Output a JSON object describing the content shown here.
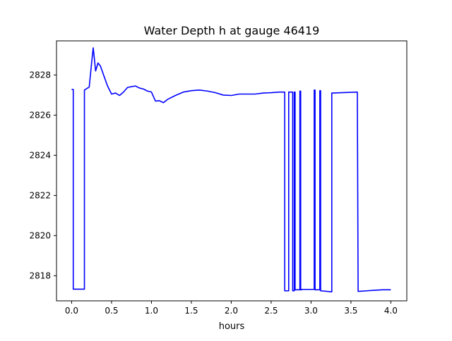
{
  "chart_data": {
    "type": "line",
    "title": "Water Depth h at gauge 46419",
    "xlabel": "hours",
    "ylabel": "",
    "xlim": [
      -0.19,
      4.2
    ],
    "ylim": [
      2816.75,
      2829.7
    ],
    "xticks": [
      0.0,
      0.5,
      1.0,
      1.5,
      2.0,
      2.5,
      3.0,
      3.5,
      4.0
    ],
    "xtick_labels": [
      "0.0",
      "0.5",
      "1.0",
      "1.5",
      "2.0",
      "2.5",
      "3.0",
      "3.5",
      "4.0"
    ],
    "yticks": [
      2818,
      2820,
      2822,
      2824,
      2826,
      2828
    ],
    "ytick_labels": [
      "2818",
      "2820",
      "2822",
      "2824",
      "2826",
      "2828"
    ],
    "grid": false,
    "legend": false,
    "series": [
      {
        "color": "#0000ff",
        "x": [
          0.0,
          0.02,
          0.02,
          0.16,
          0.16,
          0.22,
          0.25,
          0.27,
          0.285,
          0.3,
          0.33,
          0.36,
          0.4,
          0.45,
          0.5,
          0.55,
          0.6,
          0.65,
          0.7,
          0.75,
          0.8,
          0.85,
          0.9,
          0.95,
          1.0,
          1.05,
          1.1,
          1.15,
          1.2,
          1.3,
          1.4,
          1.5,
          1.6,
          1.7,
          1.8,
          1.9,
          2.0,
          2.1,
          2.2,
          2.3,
          2.4,
          2.5,
          2.6,
          2.67,
          2.67,
          2.72,
          2.72,
          2.77,
          2.77,
          2.79,
          2.79,
          2.8,
          2.8,
          2.86,
          2.86,
          2.87,
          2.87,
          2.88,
          2.88,
          3.04,
          3.04,
          3.05,
          3.05,
          3.11,
          3.11,
          3.12,
          3.12,
          3.26,
          3.26,
          3.58,
          3.58,
          3.59,
          3.59,
          3.7,
          3.8,
          3.9,
          4.0
        ],
        "y": [
          2827.28,
          2827.28,
          2817.33,
          2817.33,
          2827.25,
          2827.4,
          2828.6,
          2829.35,
          2828.8,
          2828.2,
          2828.6,
          2828.45,
          2828.0,
          2827.45,
          2827.05,
          2827.1,
          2826.98,
          2827.15,
          2827.38,
          2827.42,
          2827.45,
          2827.35,
          2827.3,
          2827.2,
          2827.15,
          2826.7,
          2826.72,
          2826.62,
          2826.78,
          2826.98,
          2827.15,
          2827.22,
          2827.25,
          2827.2,
          2827.12,
          2827.0,
          2826.98,
          2827.05,
          2827.05,
          2827.05,
          2827.1,
          2827.12,
          2827.15,
          2827.15,
          2817.25,
          2817.25,
          2827.15,
          2827.15,
          2817.25,
          2817.25,
          2827.15,
          2827.15,
          2817.3,
          2817.3,
          2827.2,
          2827.2,
          2817.3,
          2817.3,
          2817.32,
          2817.32,
          2827.25,
          2827.25,
          2817.3,
          2817.3,
          2827.22,
          2827.22,
          2817.25,
          2817.2,
          2827.1,
          2827.15,
          2827.15,
          2817.25,
          2817.22,
          2817.25,
          2817.28,
          2817.3,
          2817.3
        ]
      }
    ]
  }
}
